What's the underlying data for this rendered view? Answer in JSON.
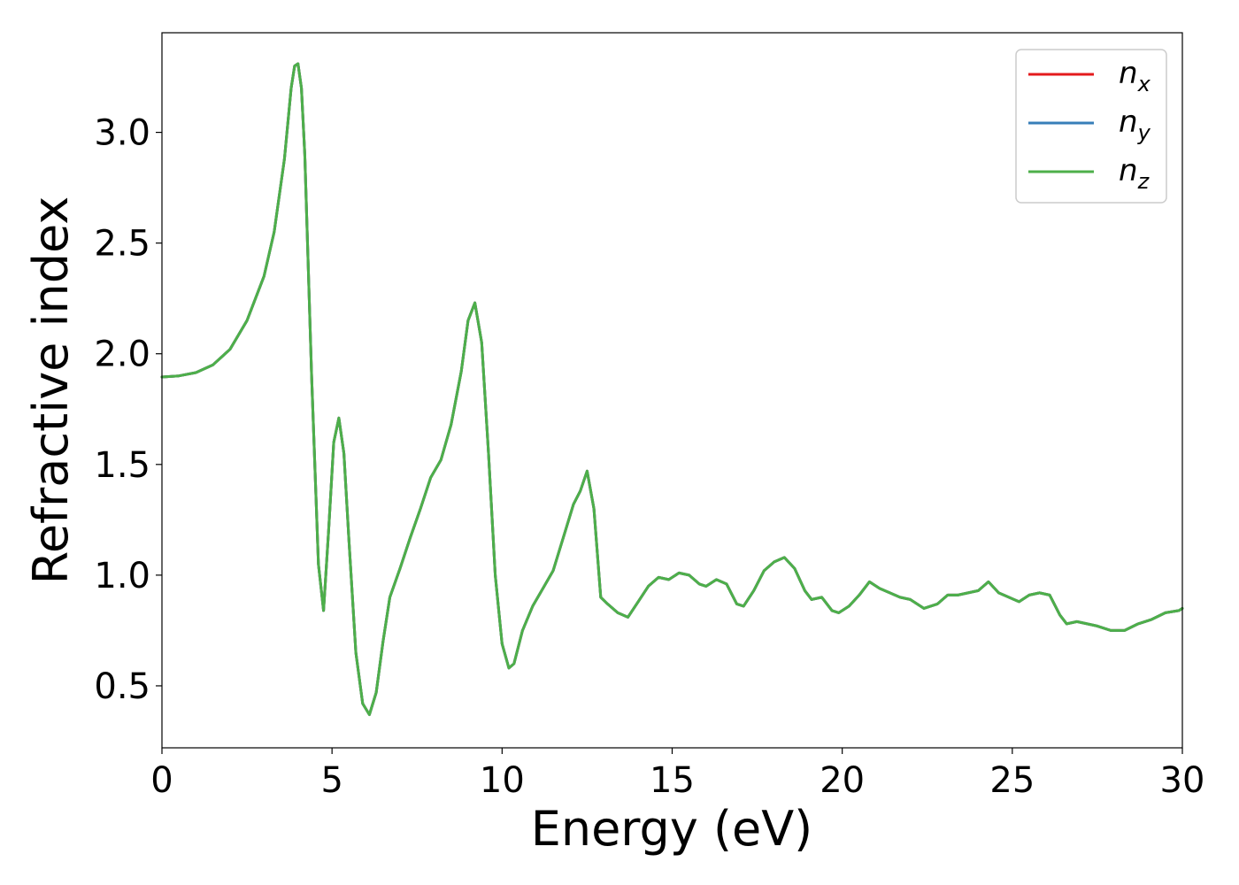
{
  "chart_data": {
    "type": "line",
    "title": "",
    "xlabel": "Energy (eV)",
    "ylabel": "Refractive index",
    "xlim": [
      0,
      30
    ],
    "ylim": [
      0.22,
      3.45
    ],
    "xticks": [
      0,
      5,
      10,
      15,
      20,
      25,
      30
    ],
    "xtick_labels": [
      "0",
      "5",
      "10",
      "15",
      "20",
      "25",
      "30"
    ],
    "yticks": [
      0.5,
      1.0,
      1.5,
      2.0,
      2.5,
      3.0
    ],
    "ytick_labels": [
      "0.5",
      "1.0",
      "1.5",
      "2.0",
      "2.5",
      "3.0"
    ],
    "grid": false,
    "legend_position": "top-right",
    "series": [
      {
        "name": "n",
        "subscript": "x",
        "color": "#e41a1c"
      },
      {
        "name": "n",
        "subscript": "y",
        "color": "#377eb8"
      },
      {
        "name": "n",
        "subscript": "z",
        "color": "#4daf4a"
      }
    ],
    "x": [
      0,
      0.5,
      1.0,
      1.5,
      2.0,
      2.5,
      3.0,
      3.3,
      3.6,
      3.8,
      3.9,
      4.0,
      4.1,
      4.2,
      4.4,
      4.6,
      4.75,
      4.9,
      5.05,
      5.2,
      5.35,
      5.5,
      5.7,
      5.9,
      6.1,
      6.3,
      6.5,
      6.7,
      7.0,
      7.3,
      7.6,
      7.9,
      8.2,
      8.5,
      8.8,
      9.0,
      9.2,
      9.4,
      9.6,
      9.8,
      10.0,
      10.2,
      10.35,
      10.6,
      10.9,
      11.2,
      11.5,
      11.8,
      12.1,
      12.3,
      12.5,
      12.7,
      12.9,
      13.1,
      13.4,
      13.7,
      14.0,
      14.3,
      14.6,
      14.9,
      15.2,
      15.5,
      15.8,
      16.0,
      16.3,
      16.6,
      16.9,
      17.1,
      17.4,
      17.7,
      18.0,
      18.3,
      18.6,
      18.9,
      19.1,
      19.4,
      19.7,
      19.9,
      20.2,
      20.5,
      20.8,
      21.1,
      21.4,
      21.7,
      22.0,
      22.4,
      22.8,
      23.1,
      23.4,
      23.7,
      24.0,
      24.3,
      24.6,
      24.9,
      25.2,
      25.5,
      25.8,
      26.1,
      26.4,
      26.6,
      26.9,
      27.2,
      27.5,
      27.9,
      28.3,
      28.7,
      29.1,
      29.5,
      29.9,
      30.0
    ],
    "y": [
      1.895,
      1.9,
      1.915,
      1.95,
      2.02,
      2.15,
      2.35,
      2.55,
      2.88,
      3.2,
      3.3,
      3.31,
      3.2,
      2.9,
      1.9,
      1.05,
      0.84,
      1.2,
      1.6,
      1.71,
      1.55,
      1.15,
      0.65,
      0.42,
      0.37,
      0.47,
      0.7,
      0.9,
      1.03,
      1.17,
      1.3,
      1.44,
      1.52,
      1.68,
      1.92,
      2.15,
      2.23,
      2.05,
      1.55,
      1.0,
      0.69,
      0.58,
      0.6,
      0.75,
      0.86,
      0.94,
      1.02,
      1.17,
      1.32,
      1.38,
      1.47,
      1.3,
      0.9,
      0.87,
      0.83,
      0.81,
      0.88,
      0.95,
      0.99,
      0.98,
      1.01,
      1.0,
      0.96,
      0.95,
      0.98,
      0.96,
      0.87,
      0.86,
      0.93,
      1.02,
      1.06,
      1.08,
      1.03,
      0.93,
      0.89,
      0.9,
      0.84,
      0.83,
      0.86,
      0.91,
      0.97,
      0.94,
      0.92,
      0.9,
      0.89,
      0.85,
      0.87,
      0.91,
      0.91,
      0.92,
      0.93,
      0.97,
      0.92,
      0.9,
      0.88,
      0.91,
      0.92,
      0.91,
      0.82,
      0.78,
      0.79,
      0.78,
      0.77,
      0.75,
      0.75,
      0.78,
      0.8,
      0.83,
      0.84,
      0.85
    ]
  }
}
